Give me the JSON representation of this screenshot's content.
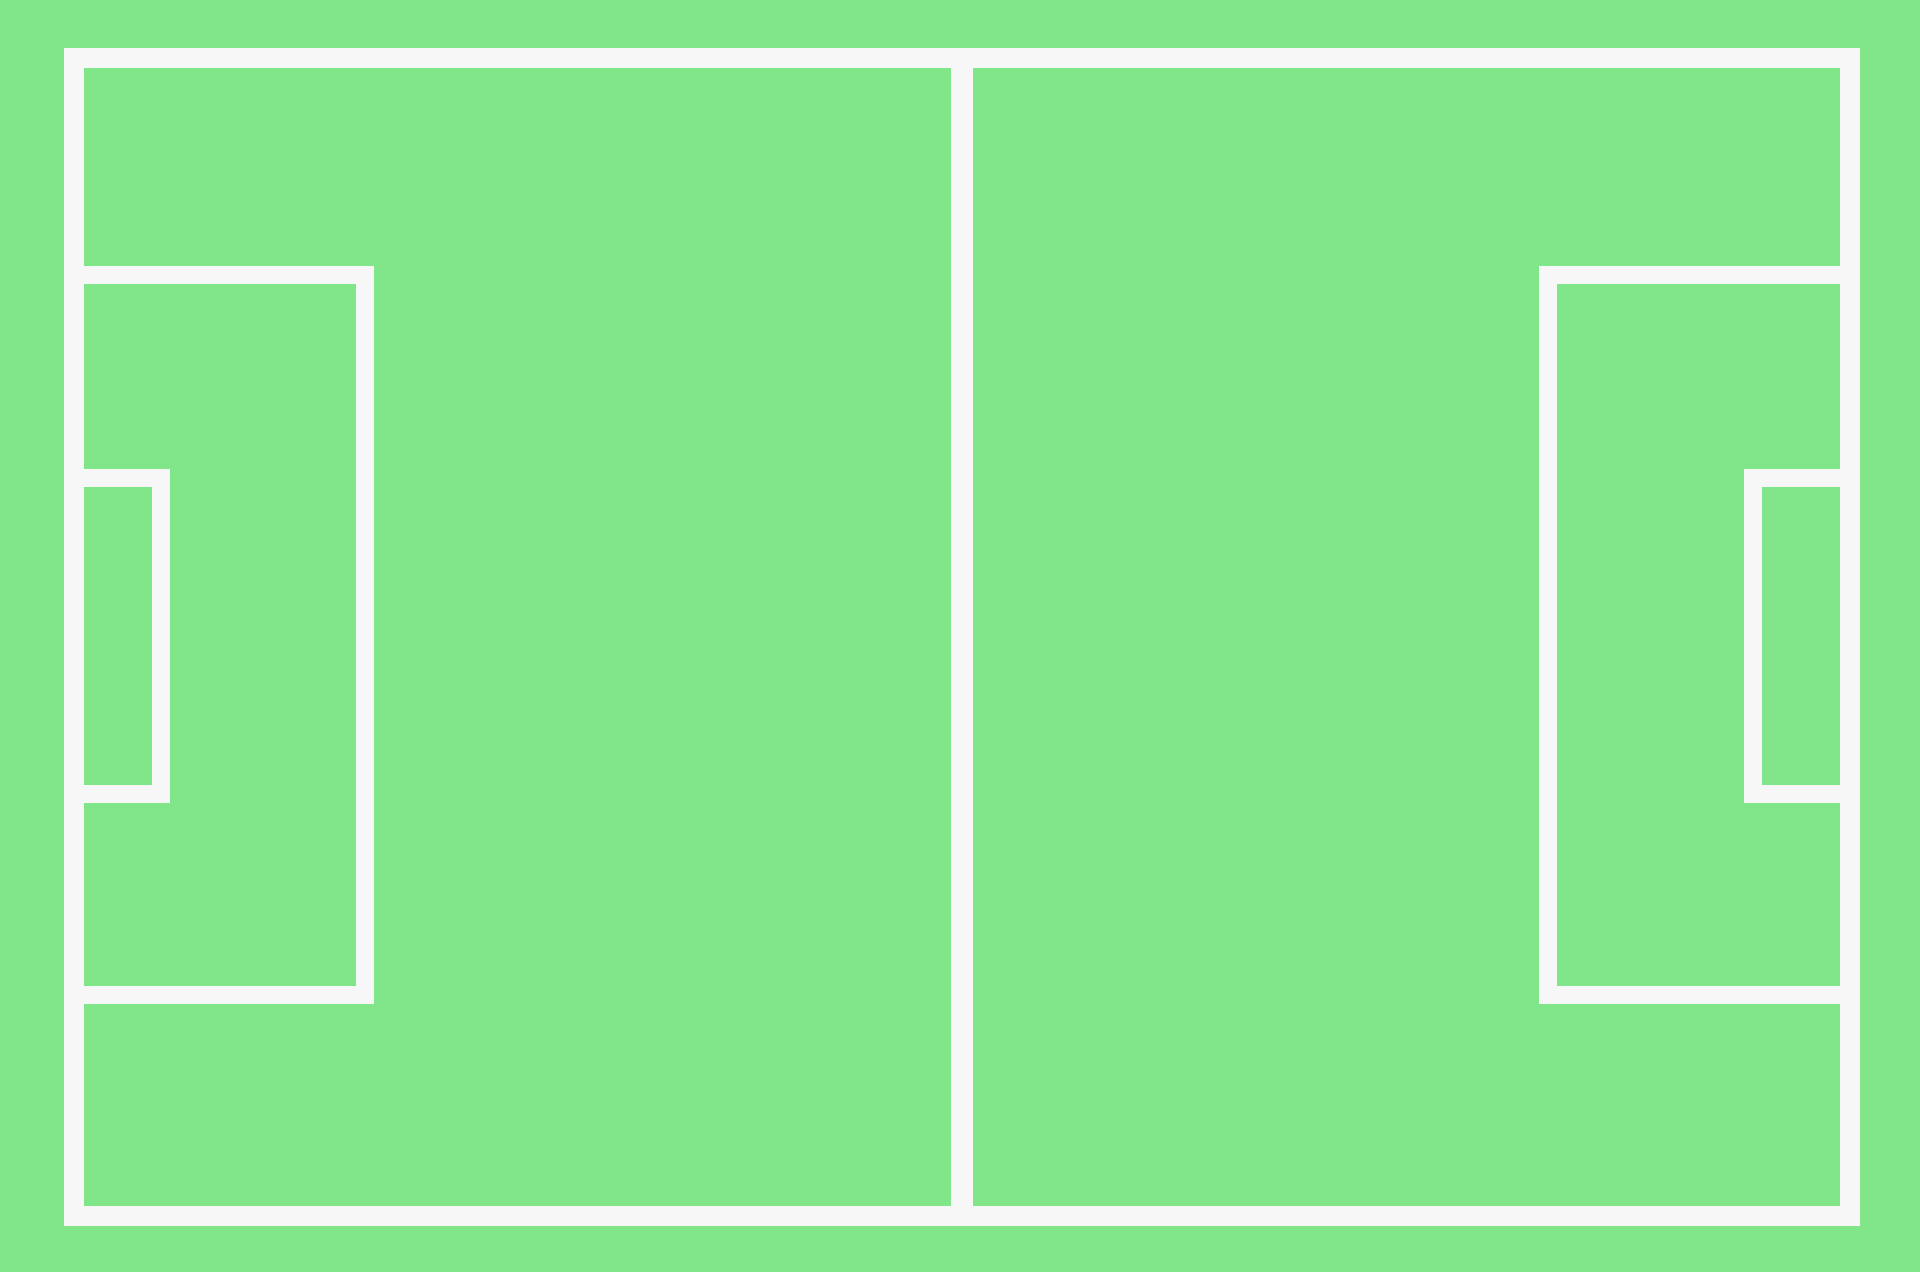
{
  "pitch": {
    "name": "soccer-field",
    "colors": {
      "grass": "#80e689",
      "lines": "#f7f7f7"
    },
    "labels": []
  }
}
